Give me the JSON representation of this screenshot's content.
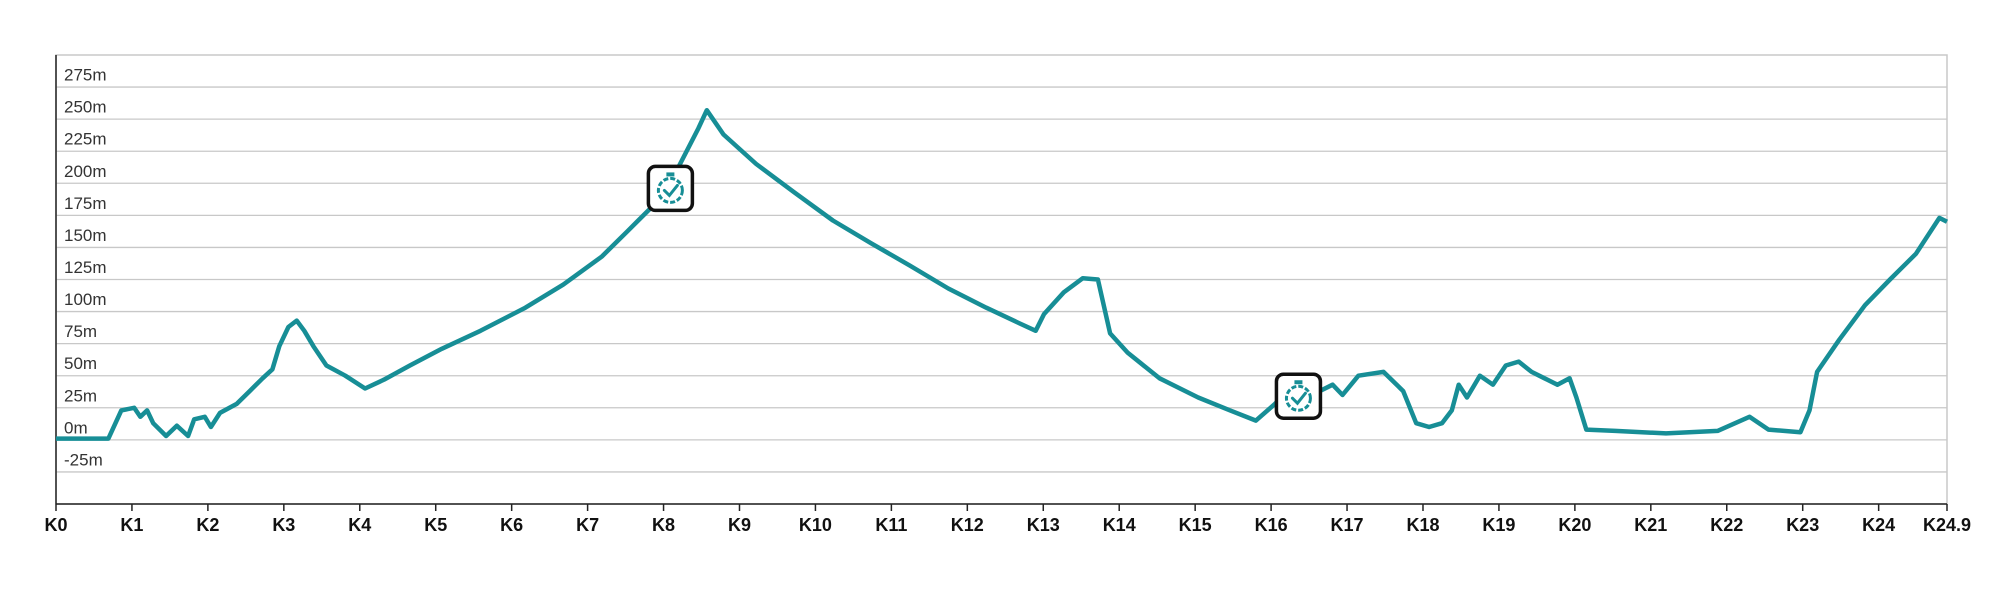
{
  "chart_data": {
    "type": "line",
    "x": [
      0,
      0.69,
      0.86,
      1.03,
      1.11,
      1.2,
      1.28,
      1.45,
      1.59,
      1.74,
      1.82,
      1.96,
      2.04,
      2.16,
      2.38,
      2.55,
      2.72,
      2.85,
      2.94,
      3.06,
      3.17,
      3.27,
      3.39,
      3.56,
      3.81,
      4.07,
      4.32,
      4.66,
      5.08,
      5.59,
      6.18,
      6.68,
      7.19,
      7.53,
      7.87,
      8.2,
      8.46,
      8.57,
      8.79,
      9.22,
      9.72,
      10.23,
      10.74,
      11.24,
      11.75,
      12.25,
      12.68,
      12.9,
      13.01,
      13.27,
      13.52,
      13.72,
      13.88,
      14.11,
      14.53,
      15.04,
      15.46,
      15.8,
      16.05,
      16.31,
      16.64,
      16.81,
      16.94,
      17.15,
      17.48,
      17.74,
      17.91,
      18.08,
      18.25,
      18.38,
      18.47,
      18.58,
      18.75,
      18.92,
      19.09,
      19.26,
      19.43,
      19.6,
      19.77,
      19.93,
      20.02,
      20.15,
      20.53,
      21.2,
      21.88,
      22.3,
      22.55,
      22.97,
      23.09,
      23.19,
      23.48,
      23.82,
      24.15,
      24.49,
      24.8,
      24.9
    ],
    "series": [
      {
        "color": "#178e96",
        "values": [
          1,
          1,
          23,
          25,
          18,
          23,
          13,
          3,
          11,
          3,
          16,
          18,
          10,
          21,
          28,
          38,
          48,
          55,
          73,
          88,
          93,
          85,
          73,
          58,
          50,
          40,
          47,
          58,
          71,
          85,
          103,
          121,
          143,
          163,
          183,
          213,
          243,
          257,
          238,
          215,
          193,
          171,
          153,
          136,
          118,
          103,
          91,
          85,
          98,
          115,
          126,
          125,
          83,
          68,
          48,
          33,
          23,
          15,
          28,
          43,
          38,
          43,
          35,
          50,
          53,
          38,
          13,
          10,
          13,
          23,
          43,
          33,
          50,
          43,
          58,
          61,
          53,
          48,
          43,
          48,
          33,
          8,
          7,
          5,
          7,
          18,
          8,
          6,
          23,
          53,
          78,
          105,
          125,
          145,
          173,
          170
        ]
      }
    ],
    "checkpoints": {
      "x": [
        8.09,
        16.36
      ],
      "y": [
        196,
        34
      ]
    },
    "xlim": [
      0,
      24.9
    ],
    "xticks": [
      {
        "value": 0,
        "label": "K0"
      },
      {
        "value": 1,
        "label": "K1"
      },
      {
        "value": 2,
        "label": "K2"
      },
      {
        "value": 3,
        "label": "K3"
      },
      {
        "value": 4,
        "label": "K4"
      },
      {
        "value": 5,
        "label": "K5"
      },
      {
        "value": 6,
        "label": "K6"
      },
      {
        "value": 7,
        "label": "K7"
      },
      {
        "value": 8,
        "label": "K8"
      },
      {
        "value": 9,
        "label": "K9"
      },
      {
        "value": 10,
        "label": "K10"
      },
      {
        "value": 11,
        "label": "K11"
      },
      {
        "value": 12,
        "label": "K12"
      },
      {
        "value": 13,
        "label": "K13"
      },
      {
        "value": 14,
        "label": "K14"
      },
      {
        "value": 15,
        "label": "K15"
      },
      {
        "value": 16,
        "label": "K16"
      },
      {
        "value": 17,
        "label": "K17"
      },
      {
        "value": 18,
        "label": "K18"
      },
      {
        "value": 19,
        "label": "K19"
      },
      {
        "value": 20,
        "label": "K20"
      },
      {
        "value": 21,
        "label": "K21"
      },
      {
        "value": 22,
        "label": "K22"
      },
      {
        "value": 23,
        "label": "K23"
      },
      {
        "value": 24,
        "label": "K24"
      },
      {
        "value": 24.9,
        "label": "K24.9"
      }
    ],
    "ylim": [
      -50,
      300
    ],
    "yticks": [
      {
        "value": -25,
        "label": "-25m"
      },
      {
        "value": 0,
        "label": "0m"
      },
      {
        "value": 25,
        "label": "25m"
      },
      {
        "value": 50,
        "label": "50m"
      },
      {
        "value": 75,
        "label": "75m"
      },
      {
        "value": 100,
        "label": "100m"
      },
      {
        "value": 125,
        "label": "125m"
      },
      {
        "value": 150,
        "label": "150m"
      },
      {
        "value": 175,
        "label": "175m"
      },
      {
        "value": 200,
        "label": "200m"
      },
      {
        "value": 225,
        "label": "225m"
      },
      {
        "value": 250,
        "label": "250m"
      },
      {
        "value": 275,
        "label": "275m"
      }
    ],
    "grid": true
  }
}
